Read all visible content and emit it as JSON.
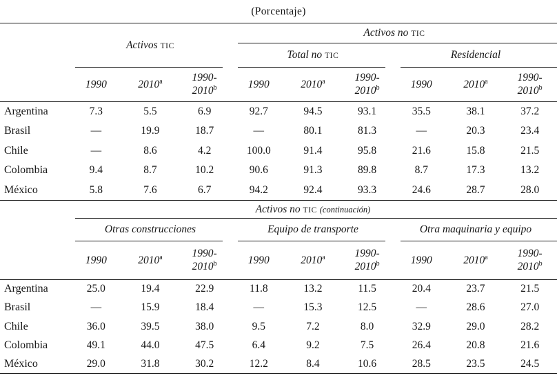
{
  "title": "(Porcentaje)",
  "rule_color": "#1d1d1d",
  "year_cols": {
    "c1": "1990",
    "c2": "2010",
    "c2_sup": "a",
    "c3_line1": "1990-",
    "c3_line2": "2010",
    "c3_sup": "b"
  },
  "table1": {
    "group_tic": {
      "pre": "Activos",
      "sc": "TIC"
    },
    "group_no_tic": {
      "pre": "Activos no",
      "sc": "TIC"
    },
    "sub_total": {
      "pre": "Total no",
      "sc": "TIC"
    },
    "sub_residencial": "Residencial",
    "rows": [
      {
        "c": "Argentina",
        "v": [
          "7.3",
          "5.5",
          "6.9",
          "92.7",
          "94.5",
          "93.1",
          "35.5",
          "38.1",
          "37.2"
        ]
      },
      {
        "c": "Brasil",
        "v": [
          "—",
          "19.9",
          "18.7",
          "—",
          "80.1",
          "81.3",
          "—",
          "20.3",
          "23.4"
        ]
      },
      {
        "c": "Chile",
        "v": [
          "—",
          "8.6",
          "4.2",
          "100.0",
          "91.4",
          "95.8",
          "21.6",
          "15.8",
          "21.5"
        ]
      },
      {
        "c": "Colombia",
        "v": [
          "9.4",
          "8.7",
          "10.2",
          "90.6",
          "91.3",
          "89.8",
          "8.7",
          "17.3",
          "13.2"
        ]
      },
      {
        "c": "México",
        "v": [
          "5.8",
          "7.6",
          "6.7",
          "94.2",
          "92.4",
          "93.3",
          "24.6",
          "28.7",
          "28.0"
        ]
      }
    ]
  },
  "table2": {
    "group": {
      "pre": "Activos no",
      "sc": "TIC",
      "post": "(continuación)"
    },
    "sub1": "Otras construcciones",
    "sub2": "Equipo de transporte",
    "sub3": "Otra maquinaria y equipo",
    "rows": [
      {
        "c": "Argentina",
        "v": [
          "25.0",
          "19.4",
          "22.9",
          "11.8",
          "13.2",
          "11.5",
          "20.4",
          "23.7",
          "21.5"
        ]
      },
      {
        "c": "Brasil",
        "v": [
          "—",
          "15.9",
          "18.4",
          "—",
          "15.3",
          "12.5",
          "—",
          "28.6",
          "27.0"
        ]
      },
      {
        "c": "Chile",
        "v": [
          "36.0",
          "39.5",
          "38.0",
          "9.5",
          "7.2",
          "8.0",
          "32.9",
          "29.0",
          "28.2"
        ]
      },
      {
        "c": "Colombia",
        "v": [
          "49.1",
          "44.0",
          "47.5",
          "6.4",
          "9.2",
          "7.5",
          "26.4",
          "20.8",
          "21.6"
        ]
      },
      {
        "c": "México",
        "v": [
          "29.0",
          "31.8",
          "30.2",
          "12.2",
          "8.4",
          "10.6",
          "28.5",
          "23.5",
          "24.5"
        ]
      }
    ]
  }
}
